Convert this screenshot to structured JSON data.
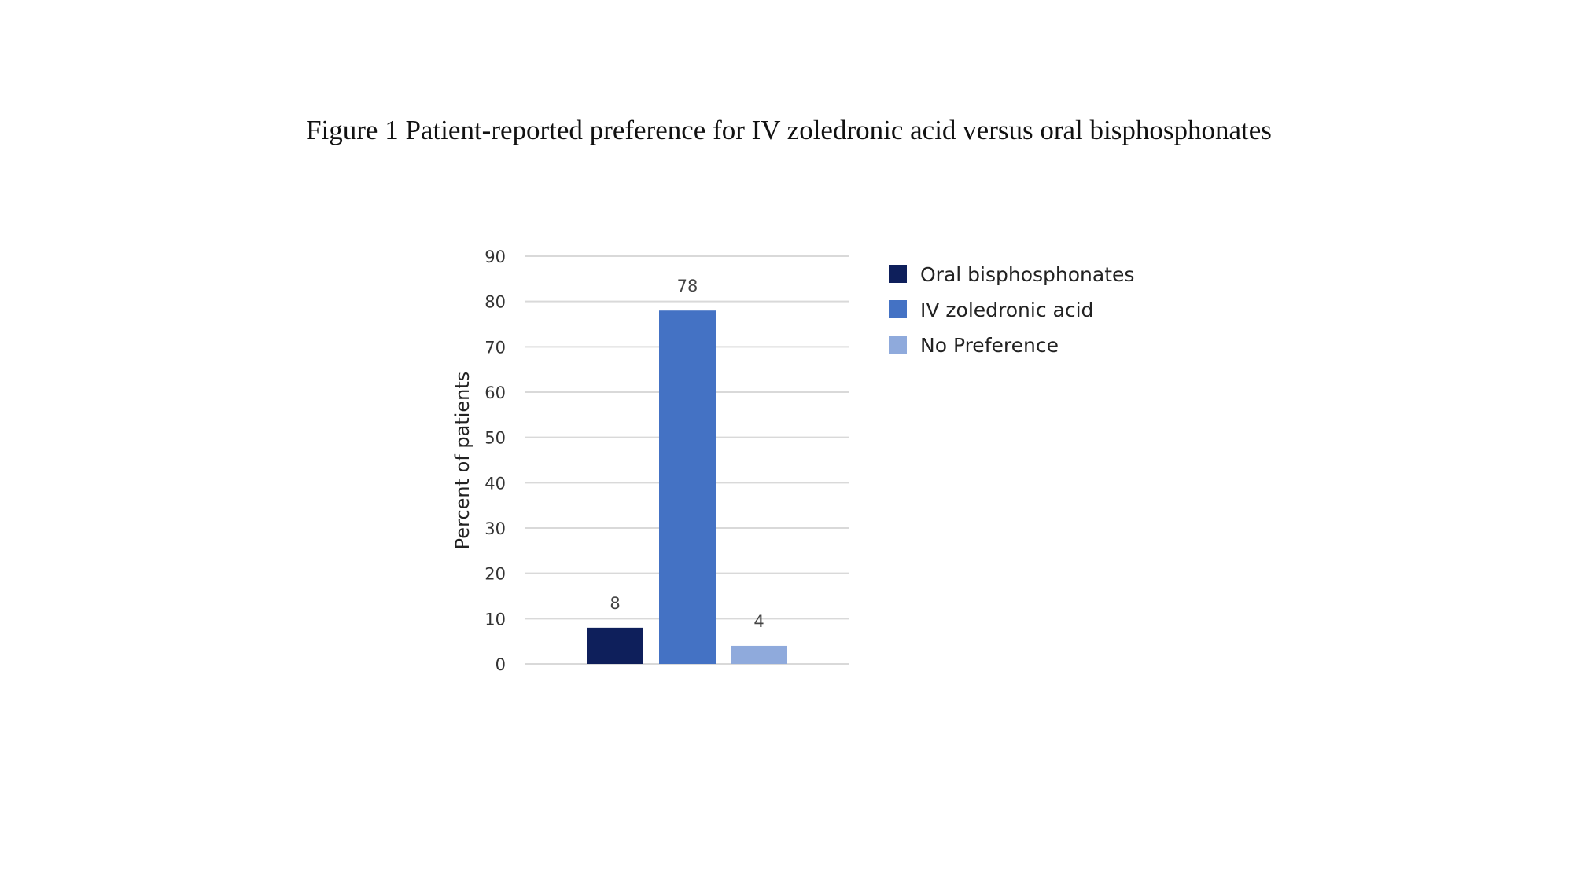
{
  "figure_title": "Figure 1 Patient-reported preference for IV zoledronic acid versus oral bisphosphonates",
  "chart_data": {
    "type": "bar",
    "title": "",
    "ylabel": "Percent of patients",
    "xlabel": "",
    "ylim": [
      0,
      90
    ],
    "yticks": [
      0,
      10,
      20,
      30,
      40,
      50,
      60,
      70,
      80,
      90
    ],
    "grid": true,
    "legend_position": "right",
    "series": [
      {
        "name": "Oral bisphosphonates",
        "value": 8,
        "label": "8",
        "color": "#0e1f5b"
      },
      {
        "name": "IV zoledronic acid",
        "value": 78,
        "label": "78",
        "color": "#4472c4"
      },
      {
        "name": "No Preference",
        "value": 4,
        "label": "4",
        "color": "#8faadc"
      }
    ]
  }
}
